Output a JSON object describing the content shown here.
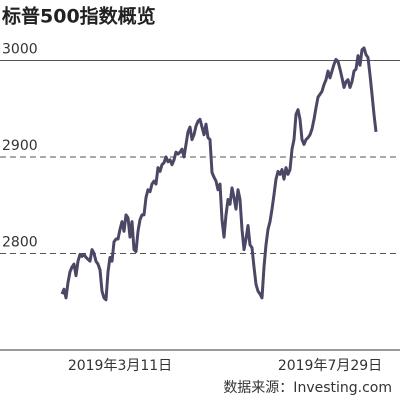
{
  "chart_data": {
    "type": "line",
    "title": "标普500指数概览",
    "source": "数据来源：Investing.com",
    "categories": [
      null,
      null,
      null,
      null,
      null,
      null,
      null,
      null,
      null,
      null,
      null,
      null,
      null,
      null,
      null,
      null,
      null,
      null,
      null,
      null,
      null,
      null,
      null,
      null,
      "2019年3月11日",
      null,
      null,
      null,
      null,
      null,
      null,
      null,
      null,
      null,
      null,
      null,
      null,
      null,
      null,
      null,
      null,
      null,
      null,
      null,
      null,
      null,
      null,
      null,
      null,
      null,
      null,
      null,
      null,
      null,
      null,
      null,
      null,
      null,
      null,
      null,
      null,
      null,
      null,
      null,
      null,
      null,
      null,
      null,
      null,
      null,
      null,
      null,
      null,
      null,
      null,
      null,
      null,
      null,
      null,
      null,
      null,
      null,
      null,
      null,
      null,
      null,
      null,
      null,
      null,
      null,
      null,
      null,
      null,
      null,
      null,
      null,
      null,
      null,
      null,
      null,
      null,
      null,
      null,
      null,
      null,
      null,
      null,
      null,
      null,
      null,
      null,
      null,
      null,
      null,
      null,
      null,
      null,
      null,
      null,
      null,
      null,
      null,
      null,
      null,
      null,
      null,
      null,
      null,
      null,
      null,
      null,
      null,
      null,
      null,
      null,
      null,
      null,
      null,
      null,
      null,
      null,
      null,
      null,
      null,
      null,
      null,
      null,
      null,
      null,
      null,
      null,
      null,
      "2019年7月29日",
      null,
      null,
      null,
      null,
      null
    ],
    "values": [
      2758,
      2763,
      2754,
      2770,
      2781,
      2786,
      2789,
      2777,
      2792,
      2799,
      2797,
      2799,
      2796,
      2794,
      2792,
      2804,
      2800,
      2792,
      2789,
      2783,
      2761,
      2754,
      2752,
      2781,
      2796,
      2792,
      2812,
      2815,
      2815,
      2825,
      2833,
      2823,
      2840,
      2837,
      2817,
      2833,
      2804,
      2802,
      2823,
      2835,
      2840,
      2840,
      2858,
      2866,
      2864,
      2872,
      2875,
      2872,
      2889,
      2885,
      2892,
      2894,
      2900,
      2895,
      2897,
      2892,
      2897,
      2905,
      2903,
      2905,
      2908,
      2900,
      2913,
      2926,
      2931,
      2918,
      2923,
      2932,
      2937,
      2939,
      2931,
      2923,
      2934,
      2920,
      2918,
      2884,
      2879,
      2875,
      2866,
      2872,
      2835,
      2817,
      2840,
      2856,
      2851,
      2868,
      2858,
      2846,
      2866,
      2856,
      2825,
      2804,
      2815,
      2829,
      2809,
      2806,
      2786,
      2768,
      2761,
      2758,
      2754,
      2786,
      2809,
      2825,
      2833,
      2846,
      2861,
      2877,
      2885,
      2882,
      2887,
      2877,
      2889,
      2882,
      2887,
      2908,
      2918,
      2944,
      2949,
      2939,
      2918,
      2913,
      2918,
      2920,
      2923,
      2929,
      2939,
      2951,
      2962,
      2965,
      2968,
      2975,
      2980,
      2989,
      2982,
      2989,
      2996,
      3001,
      2999,
      2991,
      2982,
      2972,
      2978,
      2980,
      2972,
      2978,
      2989,
      2991,
      3005,
      2995,
      3011,
      3013,
      3006,
      3003,
      2985,
      2965,
      2944,
      2926
    ],
    "color": "#4b4866",
    "ylim": [
      2700,
      3030
    ],
    "yticks": [
      2800,
      2900,
      3000
    ],
    "grid": true
  }
}
